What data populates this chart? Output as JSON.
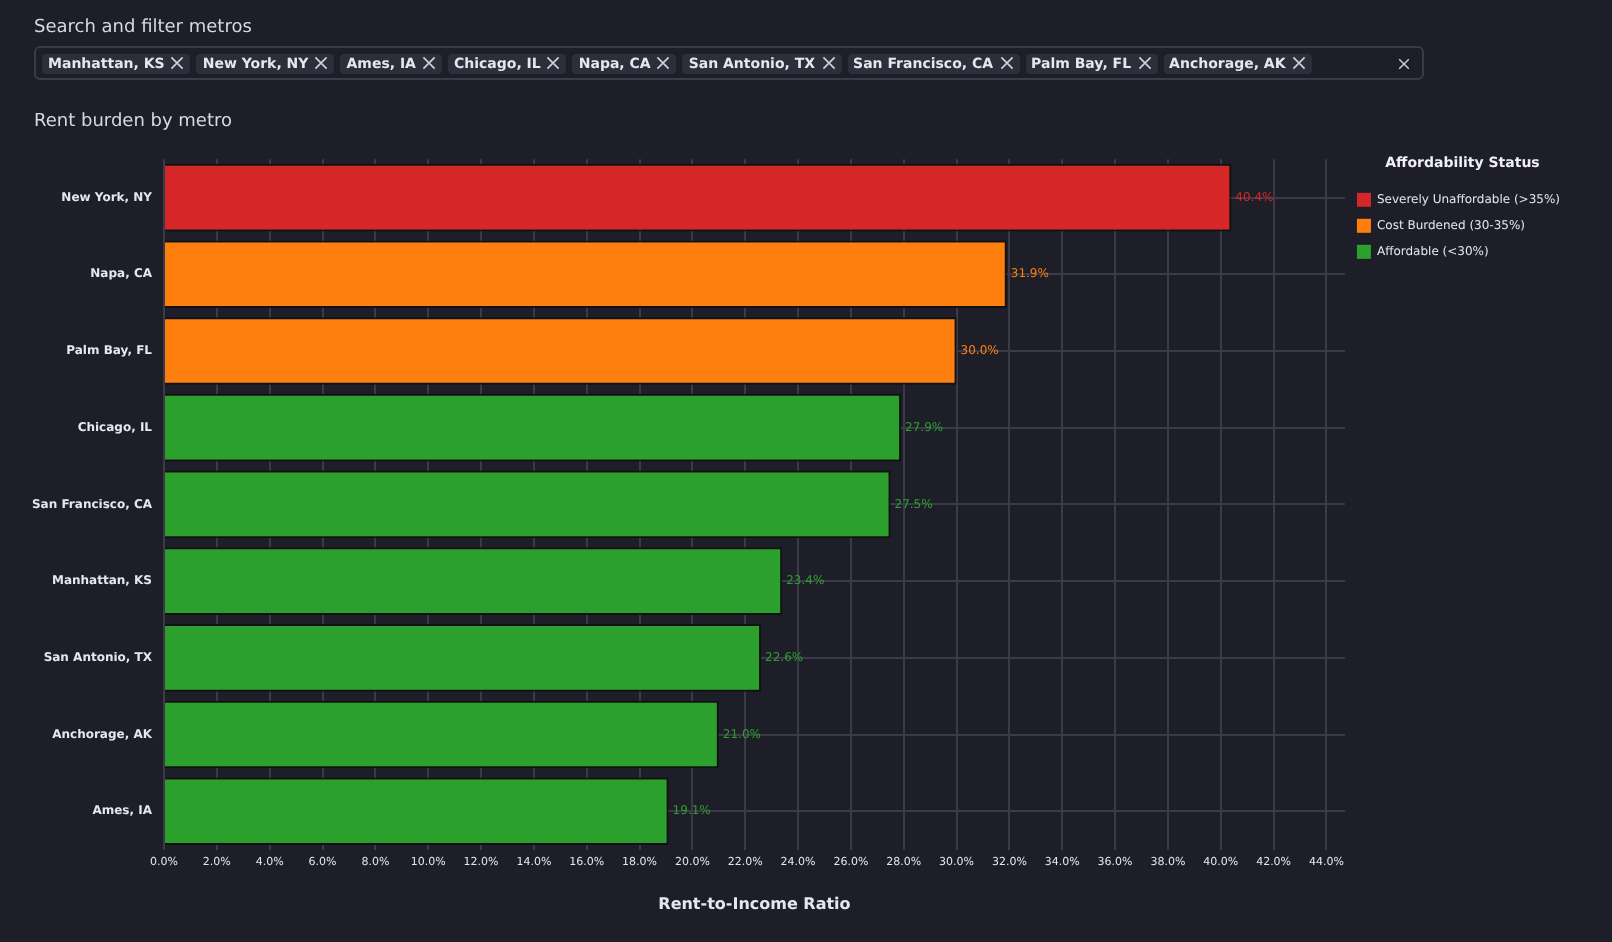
{
  "chart_data": {
    "type": "bar",
    "orientation": "horizontal",
    "stacked": true,
    "title": "Rent burden by metro",
    "xlabel": "Rent-to-Income Ratio",
    "legend_title": "Affordability Status",
    "legend": "top right",
    "grid": true,
    "annotations": [
      "Search and filter metros",
      "Manhattan, KS",
      "New York, NY",
      "Ames, IA",
      "Chicago, IL",
      "Napa, CA",
      "San Antonio, TX",
      "San Francisco, CA",
      "Palm Bay, FL",
      "Anchorage, AK"
    ],
    "categories": [
      "New York, NY",
      "Napa, CA",
      "Palm Bay, FL",
      "Chicago, IL",
      "San Francisco, CA",
      "Manhattan, KS",
      "San Antonio, TX",
      "Anchorage, AK",
      "Ames, IA"
    ],
    "series": [
      {
        "name": "Severely Unaffordable (>35%)",
        "color": "#d62728",
        "values": [
          40.4,
          null,
          null,
          null,
          null,
          null,
          null,
          null,
          null
        ],
        "value_labels": [
          "40.4%",
          null,
          null,
          null,
          null,
          null,
          null,
          null,
          null
        ]
      },
      {
        "name": "Cost Burdened (30-35%)",
        "color": "#ff7f0e",
        "values": [
          null,
          31.9,
          30.0,
          null,
          null,
          null,
          null,
          null,
          null
        ],
        "value_labels": [
          null,
          "31.9%",
          "30.0%",
          null,
          null,
          null,
          null,
          null,
          null
        ]
      },
      {
        "name": "Affordable (<30%)",
        "color": "#2ca02c",
        "values": [
          null,
          null,
          null,
          27.9,
          27.5,
          23.4,
          22.6,
          21.0,
          19.1
        ],
        "value_labels": [
          null,
          null,
          null,
          "27.9%",
          "27.5%",
          "23.4%",
          "22.6%",
          "21.0%",
          "19.1%"
        ]
      }
    ],
    "xlim": [
      0,
      44.7
    ],
    "xticks": [
      {
        "value": 0,
        "label": "0.0%"
      },
      {
        "value": 2,
        "label": "2.0%"
      },
      {
        "value": 4,
        "label": "4.0%"
      },
      {
        "value": 6,
        "label": "6.0%"
      },
      {
        "value": 8,
        "label": "8.0%"
      },
      {
        "value": 10,
        "label": "10.0%"
      },
      {
        "value": 12,
        "label": "12.0%"
      },
      {
        "value": 14,
        "label": "14.0%"
      },
      {
        "value": 16,
        "label": "16.0%"
      },
      {
        "value": 18,
        "label": "18.0%"
      },
      {
        "value": 20,
        "label": "20.0%"
      },
      {
        "value": 22,
        "label": "22.0%"
      },
      {
        "value": 24,
        "label": "24.0%"
      },
      {
        "value": 26,
        "label": "26.0%"
      },
      {
        "value": 28,
        "label": "28.0%"
      },
      {
        "value": 30,
        "label": "30.0%"
      },
      {
        "value": 32,
        "label": "32.0%"
      },
      {
        "value": 34,
        "label": "34.0%"
      },
      {
        "value": 36,
        "label": "36.0%"
      },
      {
        "value": 38,
        "label": "38.0%"
      },
      {
        "value": 40,
        "label": "40.0%"
      },
      {
        "value": 42,
        "label": "42.0%"
      },
      {
        "value": 44,
        "label": "44.0%"
      }
    ]
  }
}
